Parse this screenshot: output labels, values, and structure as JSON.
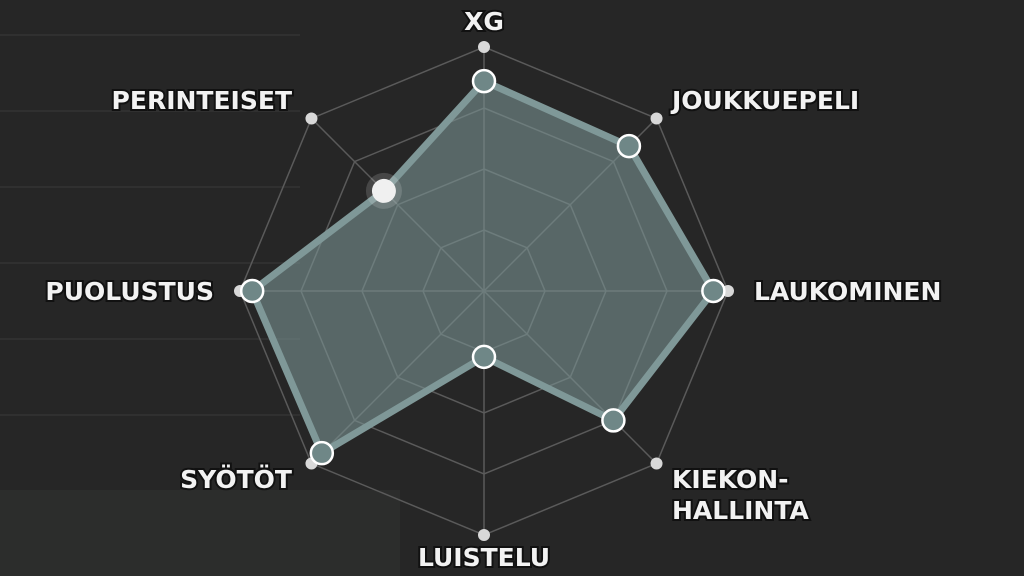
{
  "chart_data": {
    "type": "radar",
    "categories": [
      "XG",
      "JOUKKUEPELI",
      "LAUKOMINEN",
      "KIEKON-\nHALLINTA",
      "LUISTELU",
      "SYÖTÖT",
      "PUOLUSTUS",
      "PERINTEISET"
    ],
    "values": [
      0.86,
      0.84,
      0.94,
      0.75,
      0.27,
      0.94,
      0.95,
      0.58
    ],
    "range": [
      0,
      1
    ],
    "rings": 4,
    "highlighted_category": "PERINTEISET",
    "colors": {
      "fill": "#7a9393",
      "stroke": "#7f9898",
      "grid": "#5a5a5a",
      "background": "#262626",
      "point_ring": "#ffffff",
      "highlight": "#f0f0f0"
    }
  }
}
